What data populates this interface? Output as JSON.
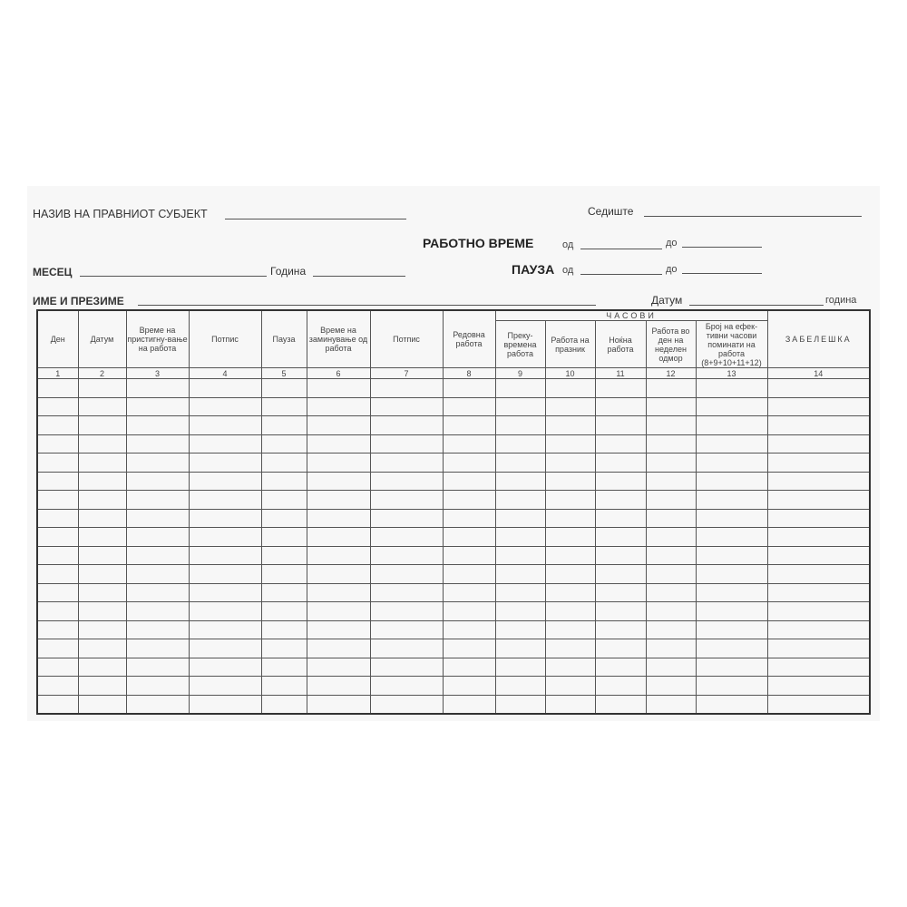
{
  "header": {
    "entity_label": "НАЗИВ НА ПРАВНИОТ СУБЈЕКТ",
    "seat_label": "Седиште",
    "working_time_label": "РАБОТНО ВРЕМЕ",
    "from_label": "од",
    "to_label": "до",
    "month_label": "МЕСЕЦ",
    "year_label": "Година",
    "pause_label": "ПАУЗА",
    "pause_from_label": "од",
    "pause_to_label": "до",
    "name_label": "ИМЕ И ПРЕЗИМЕ",
    "date_label": "Датум",
    "year_suffix_label": "година"
  },
  "table": {
    "group_header": "ЧАСОВИ",
    "columns": [
      {
        "label": "Ден",
        "number": "1"
      },
      {
        "label": "Датум",
        "number": "2"
      },
      {
        "label": "Време на пристигну-вање на работа",
        "number": "3"
      },
      {
        "label": "Потпис",
        "number": "4"
      },
      {
        "label": "Пауза",
        "number": "5"
      },
      {
        "label": "Време на заминување од работа",
        "number": "6"
      },
      {
        "label": "Потпис",
        "number": "7"
      },
      {
        "label": "Редовна работа",
        "number": "8"
      },
      {
        "label": "Преку-времена работа",
        "number": "9"
      },
      {
        "label": "Работа на празник",
        "number": "10"
      },
      {
        "label": "Ноќна работа",
        "number": "11"
      },
      {
        "label": "Работа во ден на неделен одмор",
        "number": "12"
      },
      {
        "label": "Број на ефек-тивни часови поминати на работа (8+9+10+11+12)",
        "number": "13"
      },
      {
        "label": "ЗАБЕЛЕШКА",
        "number": "14"
      }
    ]
  }
}
